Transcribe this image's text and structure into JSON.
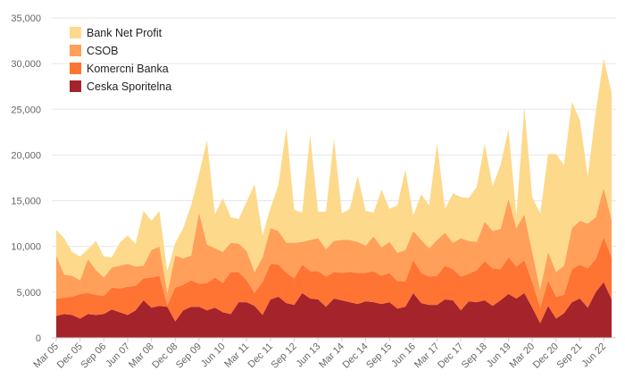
{
  "chart_data": {
    "type": "area",
    "stacked": true,
    "title": "",
    "xlabel": "",
    "ylabel": "",
    "ylim": [
      0,
      35000
    ],
    "y_ticks": [
      0,
      5000,
      10000,
      15000,
      20000,
      25000,
      30000,
      35000
    ],
    "y_tick_labels": [
      "0",
      "5,000",
      "10,000",
      "15,000",
      "20,000",
      "25,000",
      "30,000",
      "35,000"
    ],
    "x_tick_labels": [
      "Mar 05",
      "Dec 05",
      "Sep 06",
      "Jun 07",
      "Mar 08",
      "Dec 08",
      "Sep 09",
      "Jun 10",
      "Mar 11",
      "Dec 11",
      "Sep 12",
      "Jun 13",
      "Mar 14",
      "Dec 14",
      "Sep 15",
      "Jun 16",
      "Mar 17",
      "Dec 17",
      "Sep 18",
      "Jun 19",
      "Mar 20",
      "Dec 20",
      "Sep 21",
      "Jun 22"
    ],
    "x_tick_every": 3,
    "grid": true,
    "legend_position": "top-left",
    "series": [
      {
        "name": "Ceska Sporitelna",
        "color": "#a5232b",
        "values": [
          2400,
          2600,
          2500,
          2100,
          2600,
          2500,
          2600,
          3100,
          2800,
          2500,
          3000,
          4100,
          3300,
          3500,
          3400,
          1800,
          3000,
          3400,
          3400,
          3000,
          3300,
          2800,
          2600,
          3900,
          3900,
          3500,
          2500,
          4200,
          4500,
          3800,
          3600,
          4900,
          4300,
          4200,
          3400,
          4300,
          4100,
          3900,
          3700,
          4000,
          3900,
          3700,
          3900,
          3200,
          3400,
          4900,
          3800,
          3600,
          3600,
          4200,
          4100,
          3000,
          4000,
          3900,
          4100,
          3500,
          4100,
          4800,
          4300,
          4900,
          3300,
          1600,
          3500,
          2100,
          2700,
          3900,
          4300,
          3300,
          5000,
          6100,
          4200
        ]
      },
      {
        "name": "Komercni Banka",
        "color": "#ff7333",
        "values": [
          1900,
          1800,
          2000,
          2700,
          2300,
          2200,
          2000,
          2400,
          2600,
          3100,
          2700,
          2400,
          3300,
          3300,
          200,
          3700,
          2800,
          2900,
          2500,
          3000,
          3300,
          3200,
          4600,
          3300,
          2400,
          1400,
          3600,
          3900,
          3500,
          3300,
          2900,
          3100,
          3000,
          3100,
          3300,
          2900,
          3000,
          3300,
          3400,
          3100,
          3400,
          3100,
          3200,
          3000,
          2800,
          3600,
          3300,
          3100,
          3200,
          3700,
          3400,
          3700,
          3000,
          3500,
          4300,
          4100,
          3400,
          4000,
          3500,
          3600,
          2800,
          1700,
          2800,
          2400,
          2000,
          3600,
          3700,
          4300,
          3600,
          4900,
          4600
        ]
      },
      {
        "name": "CSOB",
        "color": "#ff9f59",
        "values": [
          4700,
          2500,
          2300,
          1500,
          3700,
          2700,
          2000,
          2200,
          2500,
          2500,
          2100,
          1400,
          3000,
          3200,
          1300,
          3500,
          2900,
          2700,
          7800,
          4200,
          3200,
          3400,
          3200,
          3100,
          3200,
          2300,
          2700,
          3900,
          3700,
          3300,
          3900,
          2500,
          3400,
          3600,
          3000,
          3400,
          3600,
          3500,
          3400,
          3000,
          3800,
          3100,
          3400,
          3100,
          3400,
          3200,
          3600,
          3100,
          3900,
          3600,
          2900,
          4200,
          3600,
          3100,
          4300,
          4100,
          4400,
          6400,
          4200,
          5000,
          3300,
          2000,
          3100,
          2700,
          3200,
          4500,
          4800,
          4900,
          4600,
          5400,
          4100
        ]
      },
      {
        "name": "Bank Net Profit",
        "color": "#fdd98b",
        "values": [
          2800,
          4000,
          2600,
          2600,
          1100,
          3200,
          2300,
          1100,
          2500,
          3100,
          2500,
          6000,
          3200,
          3900,
          2400,
          1400,
          3300,
          5500,
          4200,
          11400,
          3700,
          5900,
          2800,
          2700,
          5400,
          9600,
          2400,
          2200,
          5000,
          12600,
          3600,
          3200,
          11500,
          2900,
          4100,
          11200,
          2900,
          3400,
          7200,
          3800,
          2600,
          6300,
          3600,
          5200,
          8800,
          1700,
          5000,
          4700,
          10600,
          2600,
          5400,
          4500,
          4700,
          6000,
          8500,
          4900,
          7000,
          7600,
          1400,
          11700,
          6000,
          8300,
          10700,
          12900,
          11000,
          13800,
          11000,
          5200,
          11500,
          14200,
          13900
        ]
      }
    ]
  }
}
